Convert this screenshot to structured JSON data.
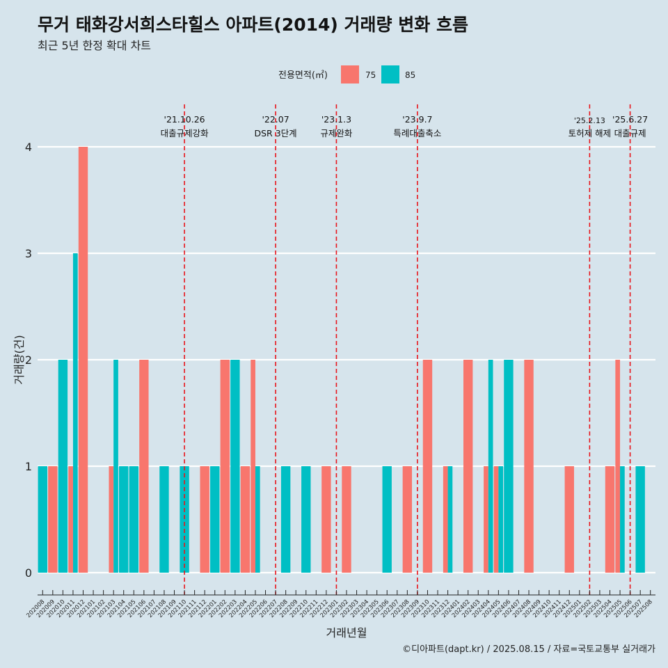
{
  "colors": {
    "s75": "#f8766d",
    "s85": "#00bfc4",
    "vline": "#e8141b",
    "grid": "#ffffff",
    "background": "#d6e4ec"
  },
  "chart_data": {
    "type": "bar",
    "title": "무거 태화강서희스타힐스 아파트(2014) 거래량 변화 흐름",
    "subtitle": "최근 5년 한정 확대 차트",
    "xlabel": "거래년월",
    "ylabel": "거래량(건)",
    "legend": {
      "title": "전용면적(㎡)",
      "position": "top"
    },
    "ylim": [
      0,
      4
    ],
    "yticks": [
      0,
      1,
      2,
      3,
      4
    ],
    "grid": true,
    "categories": [
      "202008",
      "202009",
      "202010",
      "202011",
      "202012",
      "202101",
      "202102",
      "202103",
      "202104",
      "202105",
      "202106",
      "202107",
      "202108",
      "202109",
      "202110",
      "202111",
      "202112",
      "202201",
      "202202",
      "202203",
      "202204",
      "202205",
      "202206",
      "202207",
      "202208",
      "202209",
      "202210",
      "202211",
      "202212",
      "202301",
      "202302",
      "202303",
      "202304",
      "202305",
      "202306",
      "202307",
      "202308",
      "202309",
      "202310",
      "202311",
      "202312",
      "202401",
      "202402",
      "202403",
      "202404",
      "202405",
      "202406",
      "202407",
      "202408",
      "202409",
      "202410",
      "202411",
      "202412",
      "202501",
      "202502",
      "202503",
      "202504",
      "202505",
      "202506",
      "202507",
      "202508"
    ],
    "series": [
      {
        "name": "75",
        "color": "#f8766d",
        "values": [
          0,
          1,
          0,
          1,
          4,
          0,
          0,
          1,
          0,
          0,
          2,
          0,
          0,
          0,
          0,
          0,
          1,
          0,
          2,
          0,
          1,
          2,
          0,
          0,
          0,
          0,
          0,
          0,
          1,
          0,
          1,
          0,
          0,
          0,
          0,
          0,
          1,
          0,
          2,
          0,
          1,
          0,
          2,
          0,
          1,
          1,
          0,
          0,
          2,
          0,
          0,
          0,
          1,
          0,
          0,
          0,
          1,
          2,
          0,
          0,
          0
        ]
      },
      {
        "name": "85",
        "color": "#00bfc4",
        "values": [
          1,
          0,
          2,
          3,
          0,
          0,
          0,
          2,
          1,
          1,
          0,
          0,
          1,
          0,
          1,
          0,
          0,
          1,
          0,
          2,
          0,
          1,
          0,
          0,
          1,
          0,
          1,
          0,
          0,
          0,
          0,
          0,
          0,
          0,
          1,
          0,
          0,
          0,
          0,
          0,
          1,
          0,
          0,
          0,
          2,
          1,
          2,
          0,
          0,
          0,
          0,
          0,
          0,
          0,
          0,
          0,
          0,
          1,
          0,
          1,
          0
        ]
      }
    ],
    "events": [
      {
        "at": "202110",
        "date": "'21.10.26",
        "label": "대출규제강화",
        "small": false
      },
      {
        "at": "202207",
        "date": "'22.07",
        "label": "DSR 3단계",
        "small": false
      },
      {
        "at": "202301",
        "date": "'23.1.3",
        "label": "규제완화",
        "small": false
      },
      {
        "at": "202309",
        "date": "'23.9.7",
        "label": "특례대출축소",
        "small": false
      },
      {
        "at": "202502",
        "date": "'25.2.13",
        "label": "토허제 해제",
        "small": true
      },
      {
        "at": "202506",
        "date": "'25.6.27",
        "label": "대출규제",
        "small": false
      }
    ]
  },
  "caption": "©디아파트(dapt.kr) / 2025.08.15 / 자료=국토교통부 실거래가"
}
